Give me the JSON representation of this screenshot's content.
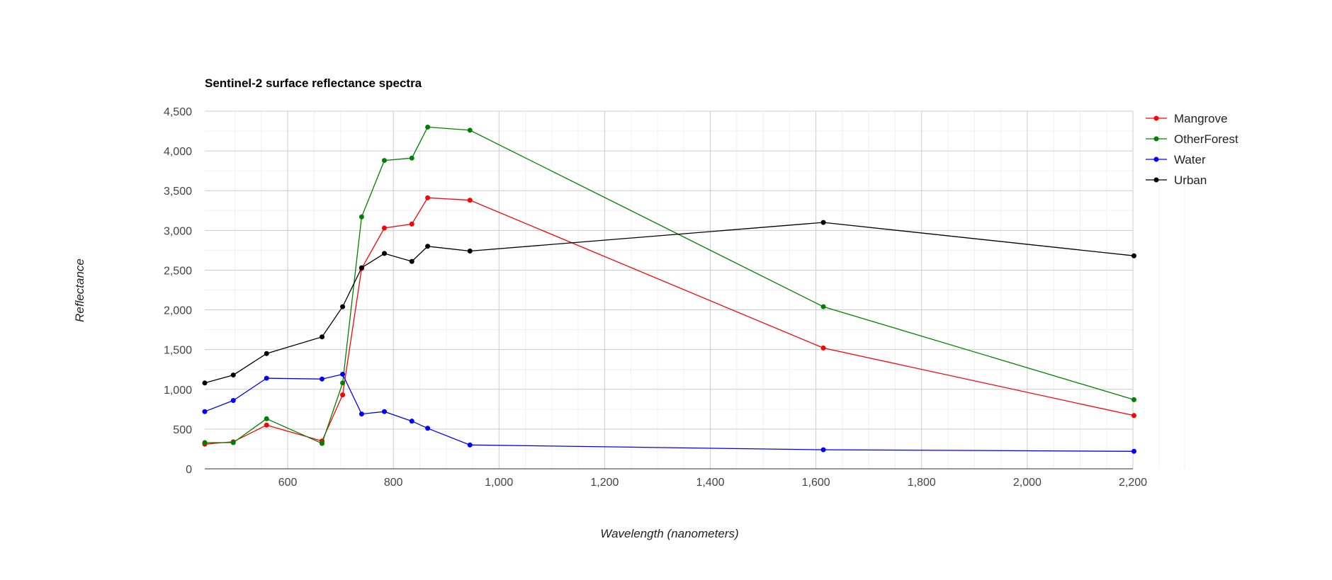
{
  "chart_data": {
    "type": "line",
    "title": "Sentinel-2 surface reflectance spectra",
    "xlabel": "Wavelength (nanometers)",
    "ylabel": "Reflectance",
    "xlim": [
      443,
      2200
    ],
    "ylim": [
      0,
      4500
    ],
    "x_ticks": [
      600,
      800,
      1000,
      1200,
      1400,
      1600,
      1800,
      2000,
      2200
    ],
    "x_tick_labels": [
      "600",
      "800",
      "1,000",
      "1,200",
      "1,400",
      "1,600",
      "1,800",
      "2,000",
      "2,200"
    ],
    "y_ticks": [
      0,
      500,
      1000,
      1500,
      2000,
      2500,
      3000,
      3500,
      4000,
      4500
    ],
    "y_tick_labels": [
      "0",
      "500",
      "1,000",
      "1,500",
      "2,000",
      "2,500",
      "3,000",
      "3,500",
      "4,000",
      "4,500"
    ],
    "grid": true,
    "legend_position": "right",
    "x": [
      443,
      497,
      560,
      665,
      704,
      740,
      783,
      835,
      865,
      945,
      1614,
      2202
    ],
    "series": [
      {
        "name": "Mangrove",
        "color": "#ff0000",
        "values": [
          310,
          340,
          550,
          350,
          930,
          2520,
          3030,
          3080,
          3410,
          3380,
          1520,
          670
        ]
      },
      {
        "name": "OtherForest",
        "color": "#008000",
        "values": [
          330,
          330,
          630,
          320,
          1080,
          3170,
          3880,
          3910,
          4300,
          4260,
          2040,
          870
        ]
      },
      {
        "name": "Water",
        "color": "#0000ff",
        "values": [
          720,
          860,
          1140,
          1130,
          1190,
          690,
          720,
          600,
          510,
          300,
          240,
          220
        ]
      },
      {
        "name": "Urban",
        "color": "#000000",
        "values": [
          1080,
          1180,
          1450,
          1660,
          2040,
          2530,
          2710,
          2610,
          2800,
          2740,
          3100,
          2680
        ]
      }
    ]
  }
}
